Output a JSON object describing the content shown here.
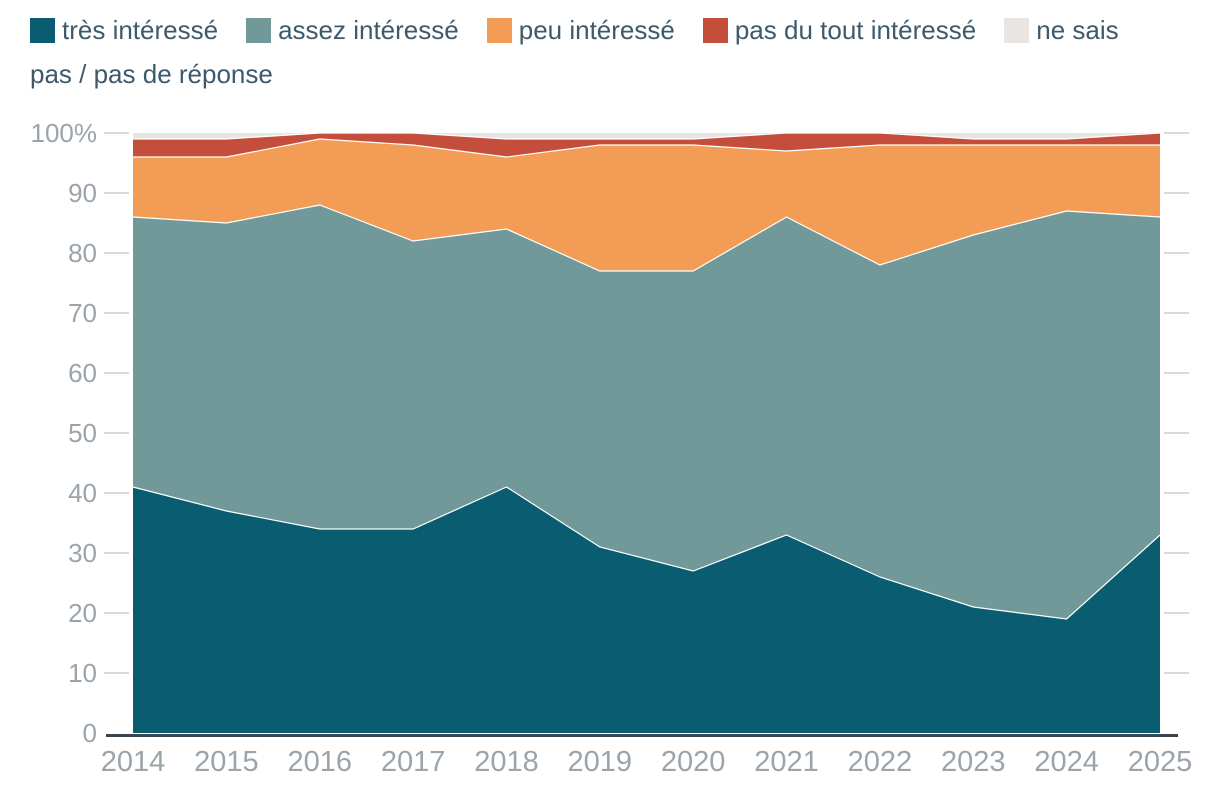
{
  "colors": {
    "legend_text": "#3d5a6d",
    "axis_label": "#9ba4ab",
    "axis_line": "#3a4750",
    "tick": "#d9d9d9",
    "separator_line": "#ffffff",
    "background": "#ffffff"
  },
  "axes": {
    "y_top_label": "100%",
    "y_ticks": [
      0,
      10,
      20,
      30,
      40,
      50,
      60,
      70,
      80,
      90,
      100
    ],
    "x_labels": [
      "2014",
      "2015",
      "2016",
      "2017",
      "2018",
      "2019",
      "2020",
      "2021",
      "2022",
      "2023",
      "2024",
      "2025"
    ]
  },
  "chart_data": {
    "type": "area",
    "stacking": "percent",
    "title": "",
    "xlabel": "",
    "ylabel": "",
    "ylim": [
      0,
      100
    ],
    "grid": "ticks-only",
    "legend_position": "top",
    "categories": [
      "2014",
      "2015",
      "2016",
      "2017",
      "2018",
      "2019",
      "2020",
      "2021",
      "2022",
      "2023",
      "2024",
      "2025"
    ],
    "series": [
      {
        "name": "très intéressé",
        "color": "#0a5c70",
        "values": [
          41,
          37,
          34,
          34,
          41,
          31,
          27,
          33,
          26,
          21,
          19,
          33
        ]
      },
      {
        "name": "assez intéressé",
        "color": "#71999a",
        "values": [
          45,
          48,
          54,
          48,
          43,
          46,
          50,
          53,
          52,
          62,
          68,
          53
        ]
      },
      {
        "name": "peu intéressé",
        "color": "#f29c56",
        "values": [
          10,
          11,
          11,
          16,
          12,
          21,
          21,
          11,
          20,
          15,
          11,
          12
        ]
      },
      {
        "name": "pas du tout intéressé",
        "color": "#c44d3b",
        "values": [
          3,
          3,
          1,
          2,
          3,
          1,
          1,
          3,
          2,
          1,
          1,
          2
        ]
      },
      {
        "name": "ne sais pas / pas de réponse",
        "color": "#e9e5e0",
        "values": [
          1,
          1,
          0,
          0,
          1,
          1,
          1,
          0,
          0,
          1,
          1,
          0
        ]
      }
    ]
  }
}
